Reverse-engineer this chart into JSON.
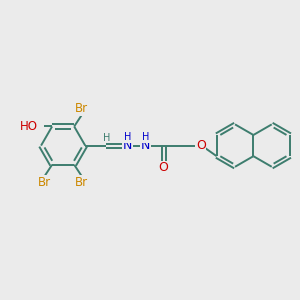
{
  "bg_color": "#ebebeb",
  "bond_color": "#3d7d6e",
  "br_color": "#cc8800",
  "o_color": "#cc0000",
  "n_color": "#0000cc",
  "font_size": 8.5,
  "bond_width": 1.4,
  "xlim": [
    0,
    10
  ],
  "ylim": [
    0,
    10
  ]
}
